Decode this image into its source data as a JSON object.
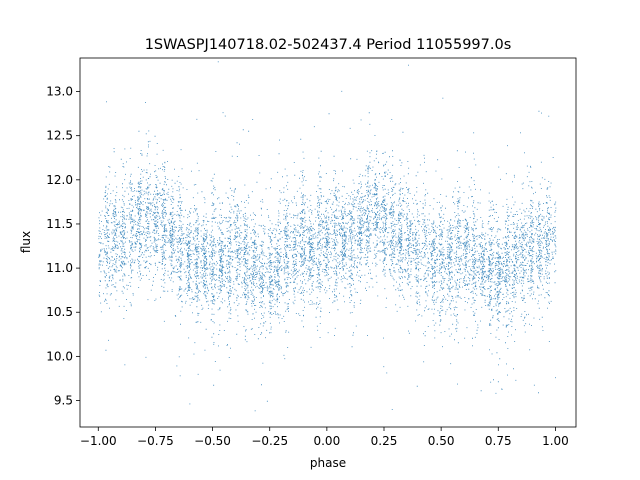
{
  "chart_data": {
    "type": "scatter",
    "title": "1SWASPJ140718.02-502437.4 Period 11055997.0s",
    "xlabel": "phase",
    "ylabel": "flux",
    "xlim": [
      -1.08,
      1.09
    ],
    "ylim": [
      9.2,
      13.38
    ],
    "xticks": [
      -1.0,
      -0.75,
      -0.5,
      -0.25,
      0.0,
      0.25,
      0.5,
      0.75,
      1.0
    ],
    "xtick_labels": [
      "−1.00",
      "−0.75",
      "−0.50",
      "−0.25",
      "0.00",
      "0.25",
      "0.50",
      "0.75",
      "1.00"
    ],
    "yticks": [
      9.5,
      10.0,
      10.5,
      11.0,
      11.5,
      12.0,
      12.5,
      13.0
    ],
    "ytick_labels": [
      "9.5",
      "10.0",
      "10.5",
      "11.0",
      "11.5",
      "12.0",
      "12.5",
      "13.0"
    ],
    "grid": false,
    "point_color": "#1f77b4",
    "points_description_free": true,
    "series": [
      {
        "x": [
          -1.0,
          -0.95,
          -0.9,
          -0.85,
          -0.8,
          -0.75,
          -0.7,
          -0.65,
          -0.6,
          -0.55,
          -0.5,
          -0.45,
          -0.4,
          -0.35,
          -0.3,
          -0.25,
          -0.2,
          -0.15,
          -0.1,
          -0.05,
          0.0,
          0.05,
          0.1,
          0.15,
          0.2,
          0.25,
          0.3,
          0.35,
          0.4,
          0.45,
          0.5,
          0.55,
          0.6,
          0.65,
          0.7,
          0.75,
          0.8,
          0.85,
          0.9,
          0.95,
          1.0
        ],
        "y": [
          11.3,
          11.35,
          11.3,
          11.45,
          11.6,
          11.55,
          11.4,
          11.3,
          11.15,
          11.1,
          11.05,
          11.1,
          11.2,
          11.1,
          11.0,
          10.9,
          11.1,
          11.2,
          11.25,
          11.2,
          11.3,
          11.35,
          11.3,
          11.45,
          11.6,
          11.55,
          11.4,
          11.3,
          11.15,
          11.1,
          11.05,
          11.1,
          11.2,
          11.1,
          11.0,
          10.9,
          11.1,
          11.2,
          11.25,
          11.2,
          11.3
        ]
      }
    ]
  }
}
